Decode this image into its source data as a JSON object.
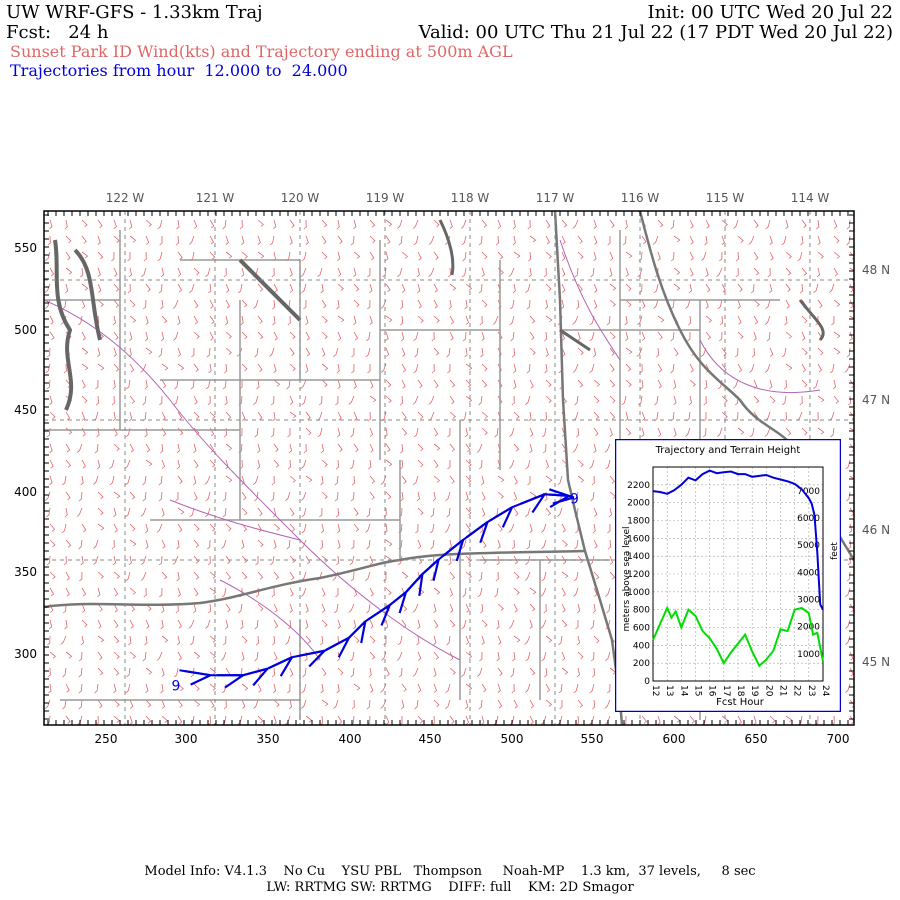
{
  "header": {
    "title": "UW WRF-GFS - 1.33km Traj",
    "init": "Init: 00 UTC Wed 20 Jul 22",
    "fcst": "Fcst:   24 h",
    "valid": "Valid: 00 UTC Thu 21 Jul 22 (17 PDT Wed 20 Jul 22)",
    "subtitle": "Sunset Park ID Wind(kts) and Trajectory ending at 500m AGL",
    "traj_range": "Trajectories from hour  12.000 to  24.000"
  },
  "map": {
    "top_lon_labels": [
      "122 W",
      "121 W",
      "120 W",
      "119 W",
      "118 W",
      "117 W",
      "116 W",
      "115 W",
      "114 W"
    ],
    "right_lat_labels": [
      "48 N",
      "47 N",
      "46 N",
      "45 N"
    ],
    "left_y_ticks": [
      "550",
      "500",
      "450",
      "400",
      "350",
      "300"
    ],
    "bottom_x_ticks": [
      "250",
      "300",
      "350",
      "400",
      "450",
      "500",
      "550",
      "600",
      "650",
      "700"
    ],
    "start_marker": "9",
    "end_marker": "9",
    "trajectory": [
      {
        "x": 296,
        "y": 290
      },
      {
        "x": 315,
        "y": 287
      },
      {
        "x": 335,
        "y": 287
      },
      {
        "x": 350,
        "y": 291
      },
      {
        "x": 365,
        "y": 298
      },
      {
        "x": 385,
        "y": 302
      },
      {
        "x": 400,
        "y": 310
      },
      {
        "x": 410,
        "y": 320
      },
      {
        "x": 425,
        "y": 330
      },
      {
        "x": 435,
        "y": 338
      },
      {
        "x": 445,
        "y": 349
      },
      {
        "x": 455,
        "y": 358
      },
      {
        "x": 470,
        "y": 370
      },
      {
        "x": 485,
        "y": 381
      },
      {
        "x": 500,
        "y": 390
      },
      {
        "x": 520,
        "y": 398
      },
      {
        "x": 535,
        "y": 397
      },
      {
        "x": 538,
        "y": 396
      }
    ],
    "colors": {
      "wind": "#e06666",
      "border": "#777777",
      "county": "#999999",
      "river": "#b266b2",
      "traj": "#0000dd",
      "terrain": "#00dd00"
    }
  },
  "inset": {
    "title": "Trajectory and Terrain Height",
    "ylabel_left": "meters above sea level",
    "ylabel_right": "feet",
    "xlabel": "Fcst Hour",
    "left_ticks": [
      "2200",
      "2000",
      "1800",
      "1600",
      "1400",
      "1200",
      "1000",
      "800",
      "600",
      "400",
      "200",
      "0"
    ],
    "right_ticks": [
      "7000",
      "6000",
      "5000",
      "4000",
      "3000",
      "2000",
      "1000"
    ],
    "hour_ticks": [
      "12",
      "13",
      "14",
      "15",
      "16",
      "17",
      "18",
      "19",
      "20",
      "21",
      "22",
      "23",
      "24"
    ]
  },
  "chart_data": {
    "type": "line",
    "title": "Trajectory and Terrain Height",
    "xlabel": "Fcst Hour",
    "ylabel": "meters above sea level",
    "xlim": [
      12,
      24
    ],
    "ylim": [
      0,
      2400
    ],
    "series": [
      {
        "x": [
          12,
          12.5,
          13,
          13.5,
          14,
          14.5,
          15,
          15.5,
          16,
          16.5,
          17,
          17.5,
          18,
          18.5,
          19,
          19.5,
          20,
          20.5,
          21,
          21.5,
          22,
          22.5,
          23,
          23.2,
          23.4,
          23.6,
          23.8,
          24
        ],
        "values": [
          2130,
          2120,
          2100,
          2140,
          2200,
          2280,
          2250,
          2320,
          2360,
          2330,
          2340,
          2350,
          2320,
          2320,
          2290,
          2300,
          2310,
          2280,
          2260,
          2240,
          2210,
          2150,
          2050,
          1990,
          1860,
          1440,
          860,
          800
        ]
      },
      {
        "x": [
          12,
          12.5,
          13,
          13.3,
          13.6,
          14,
          14.5,
          15,
          15.5,
          16,
          16.5,
          17,
          17.5,
          18,
          18.5,
          19,
          19.5,
          20,
          20.5,
          21,
          21.5,
          22,
          22.5,
          23,
          23.3,
          23.6,
          24
        ],
        "values": [
          460,
          640,
          820,
          710,
          780,
          600,
          800,
          730,
          560,
          480,
          360,
          200,
          320,
          420,
          520,
          330,
          170,
          240,
          340,
          580,
          560,
          800,
          820,
          760,
          520,
          540,
          220
        ]
      }
    ]
  },
  "footer": {
    "line1": "Model Info: V4.1.3    No Cu    YSU PBL   Thompson     Noah-MP    1.3 km,  37 levels,     8 sec",
    "line2": "LW: RRTMG SW: RRTMG    DIFF: full    KM: 2D Smagor"
  }
}
